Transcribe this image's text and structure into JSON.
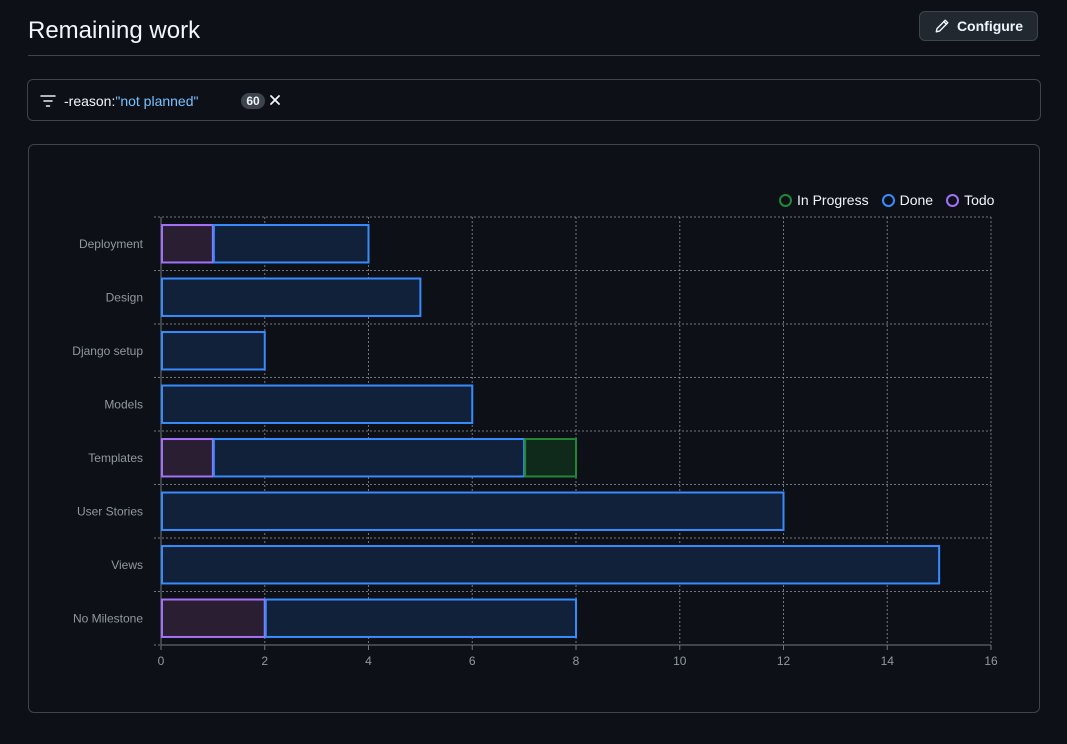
{
  "header": {
    "title": "Remaining work",
    "configure_label": "Configure"
  },
  "filter": {
    "key": "-reason:",
    "value": "\"not planned\"",
    "count": "60"
  },
  "colors": {
    "in_progress": "#238636",
    "done": "#388bfd",
    "todo": "#a371f7"
  },
  "chart_data": {
    "type": "bar",
    "orientation": "horizontal",
    "stacked": true,
    "title": "",
    "xlabel": "",
    "ylabel": "",
    "categories": [
      "Deployment",
      "Design",
      "Django setup",
      "Models",
      "Templates",
      "User Stories",
      "Views",
      "No Milestone"
    ],
    "series": [
      {
        "name": "Todo",
        "values": [
          1,
          0,
          0,
          0,
          1,
          0,
          0,
          2
        ]
      },
      {
        "name": "Done",
        "values": [
          3,
          5,
          2,
          6,
          6,
          12,
          15,
          6
        ]
      },
      {
        "name": "In Progress",
        "values": [
          0,
          0,
          0,
          0,
          1,
          0,
          0,
          0
        ]
      }
    ],
    "legend": [
      "In Progress",
      "Done",
      "Todo"
    ],
    "legend_position": "top-right",
    "xlim": [
      0,
      16
    ],
    "xticks": [
      0,
      2,
      4,
      6,
      8,
      10,
      12,
      14,
      16
    ],
    "grid": true
  }
}
